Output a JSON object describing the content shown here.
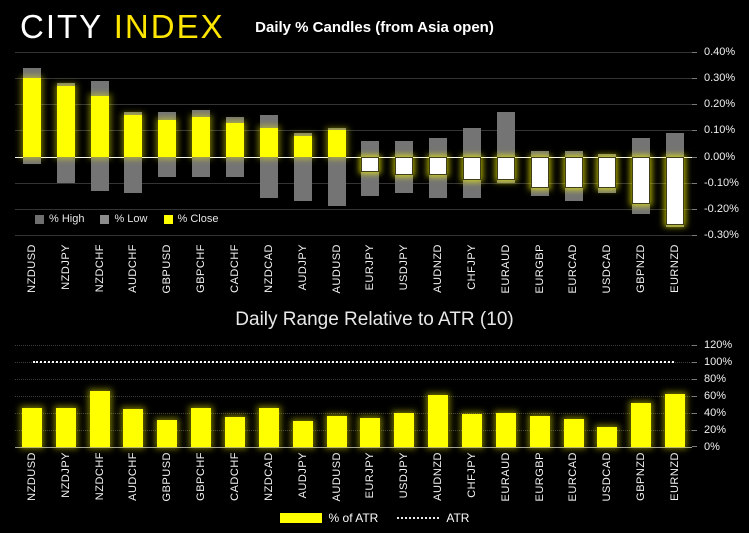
{
  "logo": {
    "city": "CITY",
    "index": "INDEX",
    "city_color": "#ffffff",
    "index_color": "#ffe600"
  },
  "background_color": "#000000",
  "chart_data": [
    {
      "type": "bar",
      "subtype": "daily-percent-candles-high-low-close",
      "title": "Daily % Candles (from Asia open)",
      "categories": [
        "NZDUSD",
        "NZDJPY",
        "NZDCHF",
        "AUDCHF",
        "GBPUSD",
        "GBPCHF",
        "CADCHF",
        "NZDCAD",
        "AUDJPY",
        "AUDUSD",
        "EURJPY",
        "USDJPY",
        "AUDNZD",
        "CHFJPY",
        "EURAUD",
        "EURGBP",
        "EURCAD",
        "USDCAD",
        "GBPNZD",
        "EURNZD"
      ],
      "series": [
        {
          "name": "% High",
          "values": [
            0.34,
            0.28,
            0.29,
            0.17,
            0.17,
            0.18,
            0.15,
            0.16,
            0.09,
            0.11,
            0.06,
            0.06,
            0.07,
            0.11,
            0.17,
            0.02,
            0.02,
            0.01,
            0.07,
            0.09
          ]
        },
        {
          "name": "% Low",
          "values": [
            -0.03,
            -0.1,
            -0.13,
            -0.14,
            -0.08,
            -0.08,
            -0.08,
            -0.16,
            -0.17,
            -0.19,
            -0.15,
            -0.14,
            -0.16,
            -0.16,
            -0.1,
            -0.15,
            -0.17,
            -0.14,
            -0.22,
            -0.27
          ]
        },
        {
          "name": "% Close",
          "values": [
            0.3,
            0.27,
            0.23,
            0.16,
            0.14,
            0.15,
            0.13,
            0.11,
            0.08,
            0.1,
            -0.06,
            -0.07,
            -0.07,
            -0.09,
            -0.09,
            -0.12,
            -0.12,
            -0.12,
            -0.18,
            -0.26
          ]
        }
      ],
      "ylim": [
        -0.3,
        0.4
      ],
      "y_ticks": [
        {
          "label": "0.40%",
          "value": 0.4
        },
        {
          "label": "0.30%",
          "value": 0.3
        },
        {
          "label": "0.20%",
          "value": 0.2
        },
        {
          "label": "0.10%",
          "value": 0.1
        },
        {
          "label": "0.00%",
          "value": 0.0
        },
        {
          "label": "-0.10%",
          "value": -0.1
        },
        {
          "label": "-0.20%",
          "value": -0.2
        },
        {
          "label": "-0.30%",
          "value": -0.3
        }
      ],
      "grid": true,
      "legend_position": "bottom-left-inside",
      "colors": {
        "high_low_bar": "#747474",
        "close_up": "#ffff00",
        "close_down_fill": "#ffffff",
        "zero_line": "#ffffff",
        "grid": "#343434"
      }
    },
    {
      "type": "bar",
      "title": "Daily Range Relative to ATR (10)",
      "categories": [
        "NZDUSD",
        "NZDJPY",
        "NZDCHF",
        "AUDCHF",
        "GBPUSD",
        "GBPCHF",
        "CADCHF",
        "NZDCAD",
        "AUDJPY",
        "AUDUSD",
        "EURJPY",
        "USDJPY",
        "AUDNZD",
        "CHFJPY",
        "EURAUD",
        "EURGBP",
        "EURCAD",
        "USDCAD",
        "GBPNZD",
        "EURNZD"
      ],
      "series": [
        {
          "name": "% of ATR",
          "values": [
            46,
            46,
            66,
            45,
            32,
            46,
            35,
            46,
            31,
            36,
            34,
            40,
            61,
            39,
            40,
            37,
            33,
            23,
            52,
            62
          ]
        }
      ],
      "reference_line": {
        "name": "ATR",
        "value": 100,
        "style": "dotted",
        "color": "#ffffff"
      },
      "ylim": [
        0,
        120
      ],
      "y_ticks": [
        {
          "label": "120%",
          "value": 120
        },
        {
          "label": "100%",
          "value": 100
        },
        {
          "label": "80%",
          "value": 80
        },
        {
          "label": "60%",
          "value": 60
        },
        {
          "label": "40%",
          "value": 40
        },
        {
          "label": "20%",
          "value": 20
        },
        {
          "label": "0%",
          "value": 0
        }
      ],
      "grid": true,
      "legend_position": "bottom-center",
      "colors": {
        "bar": "#ffff00",
        "axis_line": "#9a9a9a",
        "grid": "#3f3f3f"
      }
    }
  ]
}
